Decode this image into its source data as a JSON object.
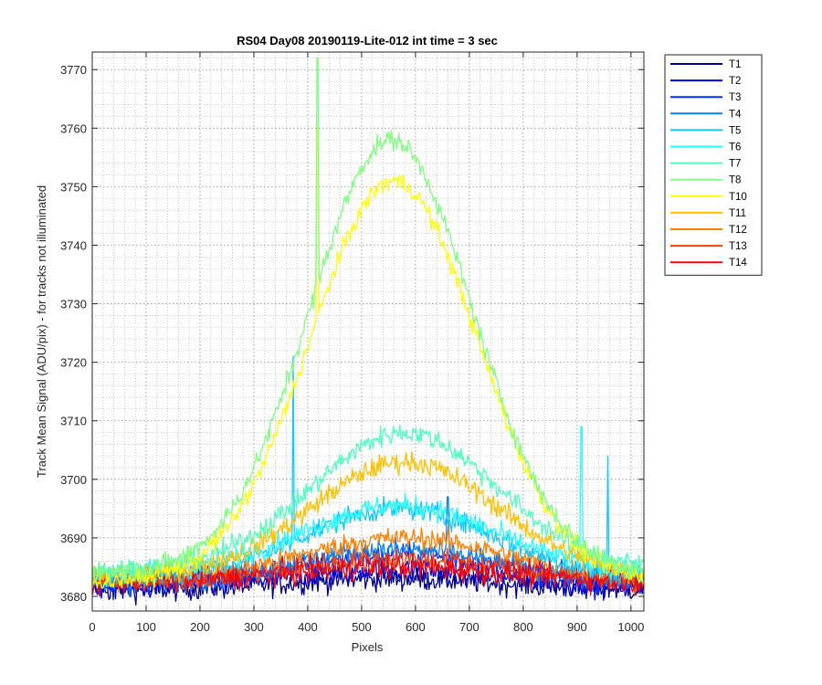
{
  "chart_data": {
    "type": "line",
    "title": "RS04 Day08 20190119-Lite-012 int time = 3 sec",
    "xlabel": "Pixels",
    "ylabel": "Track Mean Signal (ADU/pix) - for tracks not illuminated",
    "xlim": [
      0,
      1024
    ],
    "ylim": [
      3677.5,
      3773
    ],
    "x_ticks": [
      0,
      100,
      200,
      300,
      400,
      500,
      600,
      700,
      800,
      900,
      1000
    ],
    "y_ticks": [
      3680,
      3690,
      3700,
      3710,
      3720,
      3730,
      3740,
      3750,
      3760,
      3770
    ],
    "grid": true,
    "minor_grid": true,
    "legend_position": "outside-top-right",
    "series": [
      {
        "name": "T1",
        "color": "#00008f",
        "base": 3681.0,
        "peak": 3683.0,
        "center": 560,
        "width": 300,
        "noise": 1.4
      },
      {
        "name": "T2",
        "color": "#0000dd",
        "base": 3681.5,
        "peak": 3684.5,
        "center": 560,
        "width": 300,
        "noise": 1.5
      },
      {
        "name": "T3",
        "color": "#0030ff",
        "base": 3682.0,
        "peak": 3687.0,
        "center": 570,
        "width": 290,
        "noise": 1.4
      },
      {
        "name": "T4",
        "color": "#0080ff",
        "base": 3682.0,
        "peak": 3688.0,
        "center": 570,
        "width": 290,
        "noise": 1.4
      },
      {
        "name": "T5",
        "color": "#10c8ff",
        "base": 3683.0,
        "peak": 3695.0,
        "center": 570,
        "width": 270,
        "noise": 1.3
      },
      {
        "name": "T6",
        "color": "#20ffff",
        "base": 3684.0,
        "peak": 3695.5,
        "center": 570,
        "width": 270,
        "noise": 1.3
      },
      {
        "name": "T7",
        "color": "#50ffc0",
        "base": 3684.5,
        "peak": 3708.0,
        "center": 580,
        "width": 260,
        "noise": 1.3
      },
      {
        "name": "T8",
        "color": "#80ff80",
        "base": 3684.0,
        "peak": 3758.0,
        "center": 555,
        "width": 230,
        "noise": 1.2
      },
      {
        "name": "T10",
        "color": "#ffff00",
        "base": 3682.5,
        "peak": 3751.0,
        "center": 560,
        "width": 235,
        "noise": 1.2
      },
      {
        "name": "T11",
        "color": "#ffc000",
        "base": 3683.5,
        "peak": 3703.0,
        "center": 580,
        "width": 260,
        "noise": 1.3
      },
      {
        "name": "T12",
        "color": "#ff8000",
        "base": 3683.0,
        "peak": 3690.0,
        "center": 580,
        "width": 280,
        "noise": 1.3
      },
      {
        "name": "T13",
        "color": "#ff4000",
        "base": 3682.5,
        "peak": 3686.5,
        "center": 580,
        "width": 290,
        "noise": 1.3
      },
      {
        "name": "T14",
        "color": "#ff0000",
        "base": 3682.5,
        "peak": 3685.0,
        "center": 570,
        "width": 300,
        "noise": 1.5
      }
    ],
    "spikes": [
      {
        "series": "T8",
        "x": 418,
        "y": 3772
      },
      {
        "series": "T10",
        "x": 418,
        "y": 3760
      },
      {
        "series": "T5",
        "x": 373,
        "y": 3721
      },
      {
        "series": "T4",
        "x": 660,
        "y": 3697
      },
      {
        "series": "T6",
        "x": 908,
        "y": 3709
      },
      {
        "series": "T5",
        "x": 957,
        "y": 3704
      }
    ]
  }
}
